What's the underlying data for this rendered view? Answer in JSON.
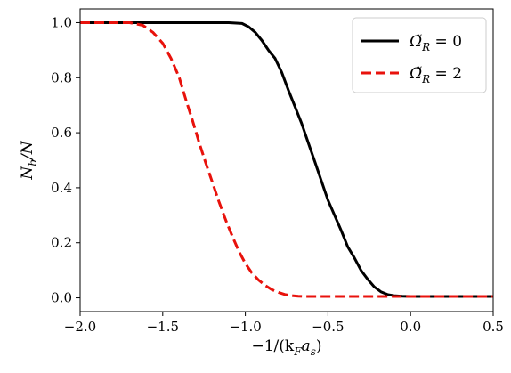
{
  "chart_data": {
    "type": "line",
    "xlabel": "−1/(k",
    "xlabel_sub_1": "F",
    "xlabel_mid": "a",
    "xlabel_sub_2": "s",
    "xlabel_end": ")",
    "ylabel": "N",
    "ylabel_sub": "b",
    "ylabel_end": "/N",
    "xlim": [
      -2.0,
      0.5
    ],
    "ylim": [
      -0.05,
      1.05
    ],
    "xticks": [
      -2.0,
      -1.5,
      -1.0,
      -0.5,
      0.0,
      0.5
    ],
    "xtick_labels": [
      "−2.0",
      "−1.5",
      "−1.0",
      "−0.5",
      "0.0",
      "0.5"
    ],
    "yticks": [
      0.0,
      0.2,
      0.4,
      0.6,
      0.8,
      1.0
    ],
    "ytick_labels": [
      "0.0",
      "0.2",
      "0.4",
      "0.6",
      "0.8",
      "1.0"
    ],
    "grid": false,
    "legend_position": "top-right",
    "series": [
      {
        "name": "Ω̃R = 0",
        "legend_symbol": "Ω̃",
        "legend_sub": "R",
        "legend_rest": " = 0",
        "color": "#000000",
        "style": "solid",
        "x": [
          -2.0,
          -1.5,
          -1.1,
          -1.02,
          -0.98,
          -0.94,
          -0.9,
          -0.86,
          -0.82,
          -0.78,
          -0.74,
          -0.7,
          -0.66,
          -0.62,
          -0.58,
          -0.54,
          -0.5,
          -0.46,
          -0.42,
          -0.38,
          -0.34,
          -0.3,
          -0.26,
          -0.22,
          -0.18,
          -0.14,
          -0.1,
          -0.05,
          0.0,
          0.5
        ],
        "y": [
          1.0,
          1.0,
          1.0,
          0.997,
          0.985,
          0.965,
          0.935,
          0.9,
          0.87,
          0.82,
          0.755,
          0.695,
          0.635,
          0.565,
          0.495,
          0.425,
          0.355,
          0.3,
          0.245,
          0.185,
          0.145,
          0.1,
          0.068,
          0.04,
          0.022,
          0.012,
          0.008,
          0.006,
          0.005,
          0.005
        ]
      },
      {
        "name": "Ω̃R = 2",
        "legend_symbol": "Ω̃",
        "legend_sub": "R",
        "legend_rest": " = 2",
        "color": "#e8120c",
        "style": "dashed",
        "x": [
          -2.0,
          -1.7,
          -1.62,
          -1.56,
          -1.5,
          -1.45,
          -1.4,
          -1.36,
          -1.32,
          -1.28,
          -1.24,
          -1.2,
          -1.16,
          -1.12,
          -1.08,
          -1.04,
          -1.0,
          -0.96,
          -0.92,
          -0.88,
          -0.84,
          -0.8,
          -0.76,
          -0.72,
          -0.68,
          -0.64,
          -0.6,
          -0.5,
          0.0,
          0.5
        ],
        "y": [
          1.0,
          1.0,
          0.99,
          0.965,
          0.925,
          0.87,
          0.8,
          0.72,
          0.645,
          0.565,
          0.49,
          0.42,
          0.35,
          0.285,
          0.225,
          0.17,
          0.125,
          0.09,
          0.065,
          0.045,
          0.03,
          0.02,
          0.012,
          0.008,
          0.006,
          0.005,
          0.005,
          0.005,
          0.005,
          0.005
        ]
      }
    ]
  }
}
